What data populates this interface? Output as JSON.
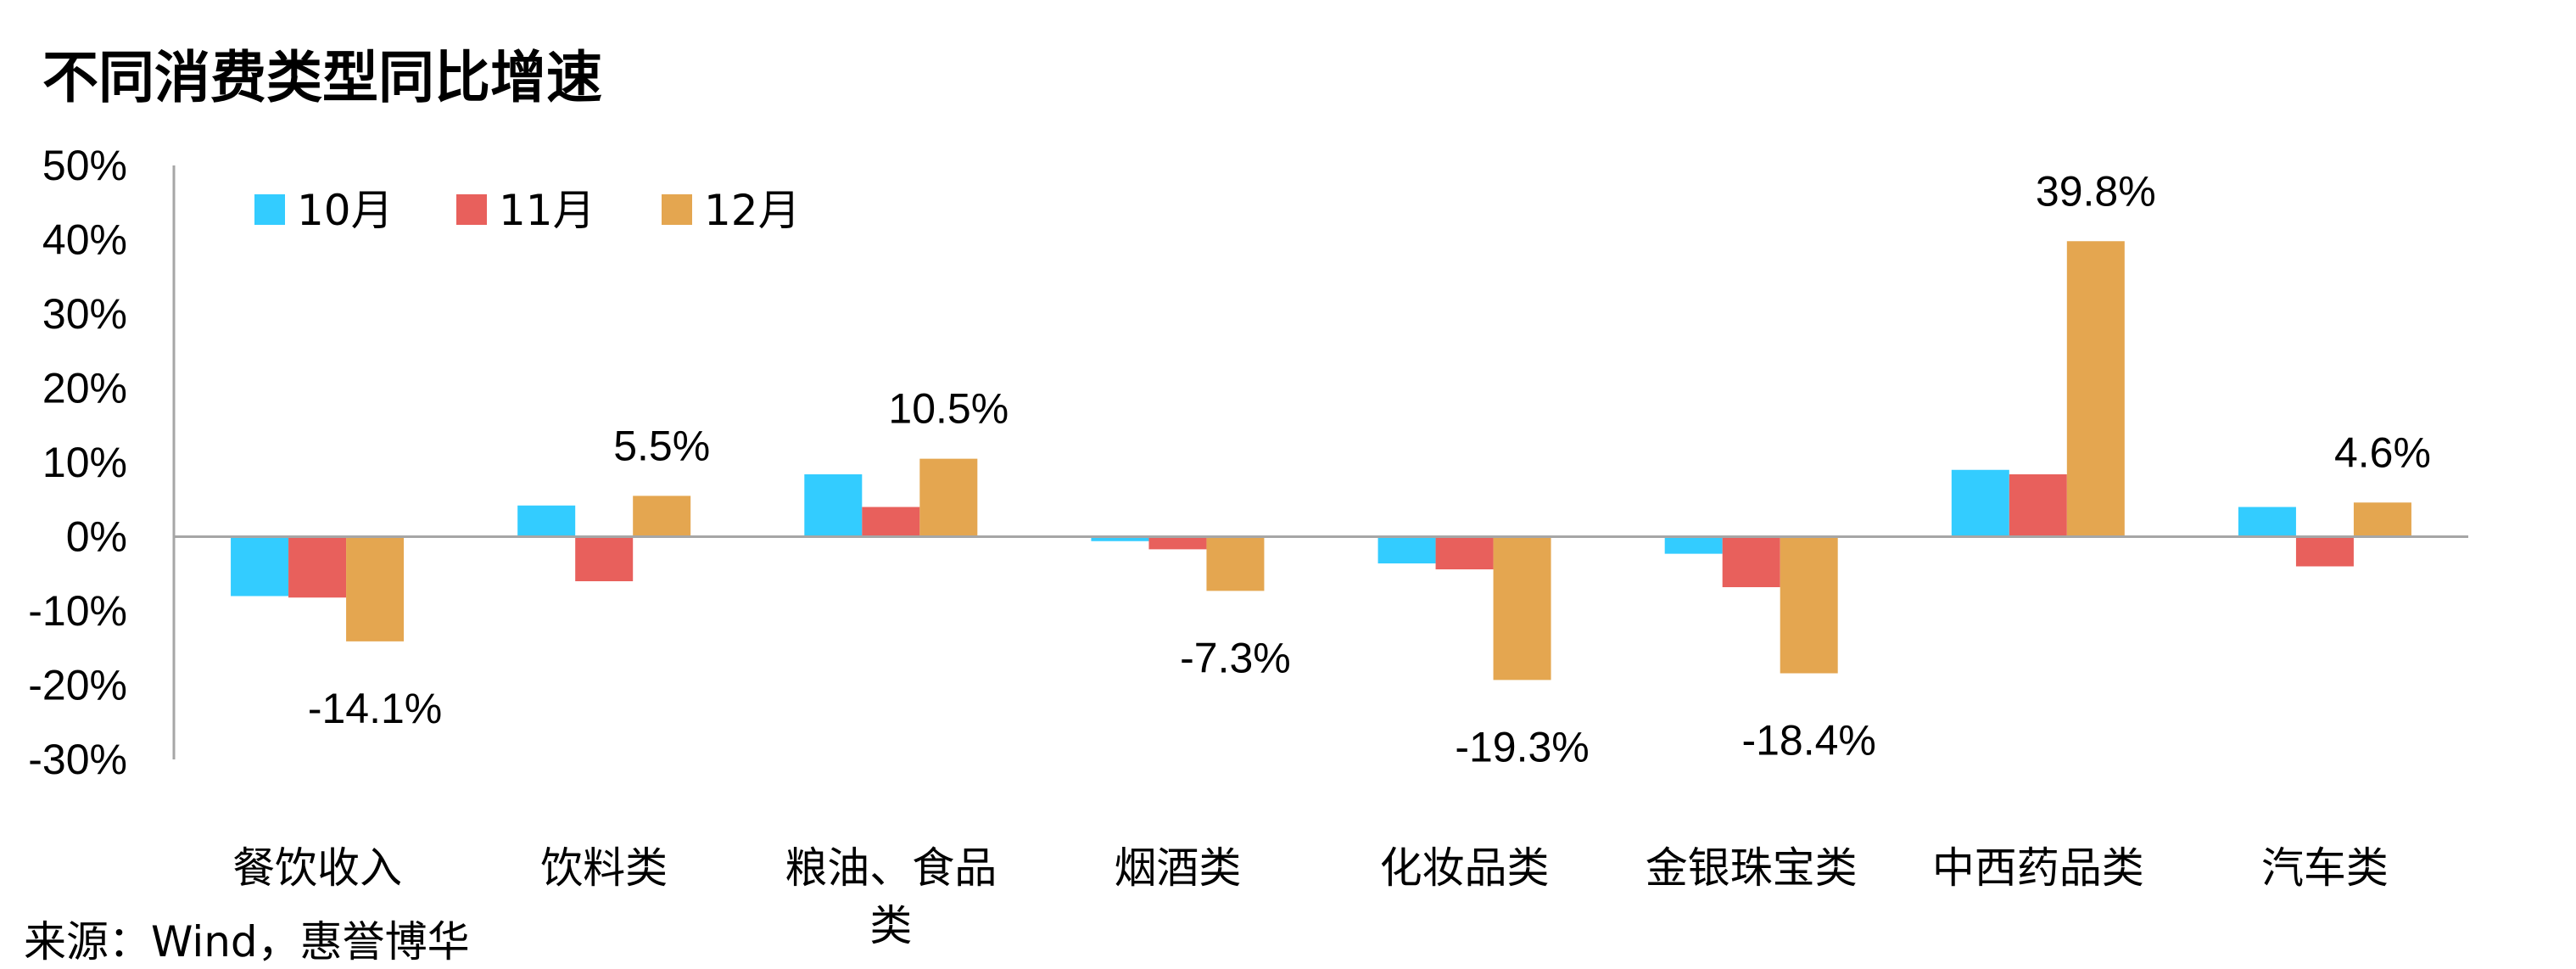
{
  "title": "不同消费类型同比增速",
  "source": "来源：Wind，惠誉博华",
  "colors": {
    "10月": "#33CCFF",
    "11月": "#E8605C",
    "12月": "#E4A650"
  },
  "chart_data": {
    "type": "bar",
    "title": "不同消费类型同比增速",
    "xlabel": "",
    "ylabel": "",
    "categories": [
      "餐饮收入",
      "饮料类",
      "粮油、食品类",
      "烟酒类",
      "化妆品类",
      "金银珠宝类",
      "中西药品类",
      "汽车类"
    ],
    "category_lines": [
      [
        "餐饮收入"
      ],
      [
        "饮料类"
      ],
      [
        "粮油、食品",
        "类"
      ],
      [
        "烟酒类"
      ],
      [
        "化妆品类"
      ],
      [
        "金银珠宝类"
      ],
      [
        "中西药品类"
      ],
      [
        "汽车类"
      ]
    ],
    "series": [
      {
        "name": "10月",
        "values": [
          -8.0,
          4.2,
          8.4,
          -0.6,
          -3.6,
          -2.3,
          9.0,
          4.0
        ]
      },
      {
        "name": "11月",
        "values": [
          -8.2,
          -6.0,
          4.0,
          -1.7,
          -4.4,
          -6.8,
          8.4,
          -4.0
        ]
      },
      {
        "name": "12月",
        "values": [
          -14.1,
          5.5,
          10.5,
          -7.3,
          -19.3,
          -18.4,
          39.8,
          4.6
        ]
      }
    ],
    "data_labels": [
      {
        "series": "12月",
        "category": "餐饮收入",
        "text": "-14.1%"
      },
      {
        "series": "12月",
        "category": "饮料类",
        "text": "5.5%"
      },
      {
        "series": "12月",
        "category": "粮油、食品类",
        "text": "10.5%"
      },
      {
        "series": "12月",
        "category": "烟酒类",
        "text": "-7.3%"
      },
      {
        "series": "12月",
        "category": "化妆品类",
        "text": "-19.3%"
      },
      {
        "series": "12月",
        "category": "金银珠宝类",
        "text": "-18.4%"
      },
      {
        "series": "12月",
        "category": "中西药品类",
        "text": "39.8%"
      },
      {
        "series": "12月",
        "category": "汽车类",
        "text": "4.6%"
      }
    ],
    "ylim": [
      -30,
      50
    ],
    "yticks": [
      50,
      40,
      30,
      20,
      10,
      0,
      -10,
      -20,
      -30
    ],
    "ytick_labels": [
      "50%",
      "40%",
      "30%",
      "20%",
      "10%",
      "0%",
      "-10%",
      "-20%",
      "-30%"
    ],
    "legend": {
      "placement": "top-left",
      "entries": [
        "10月",
        "11月",
        "12月"
      ]
    },
    "grid": false
  }
}
